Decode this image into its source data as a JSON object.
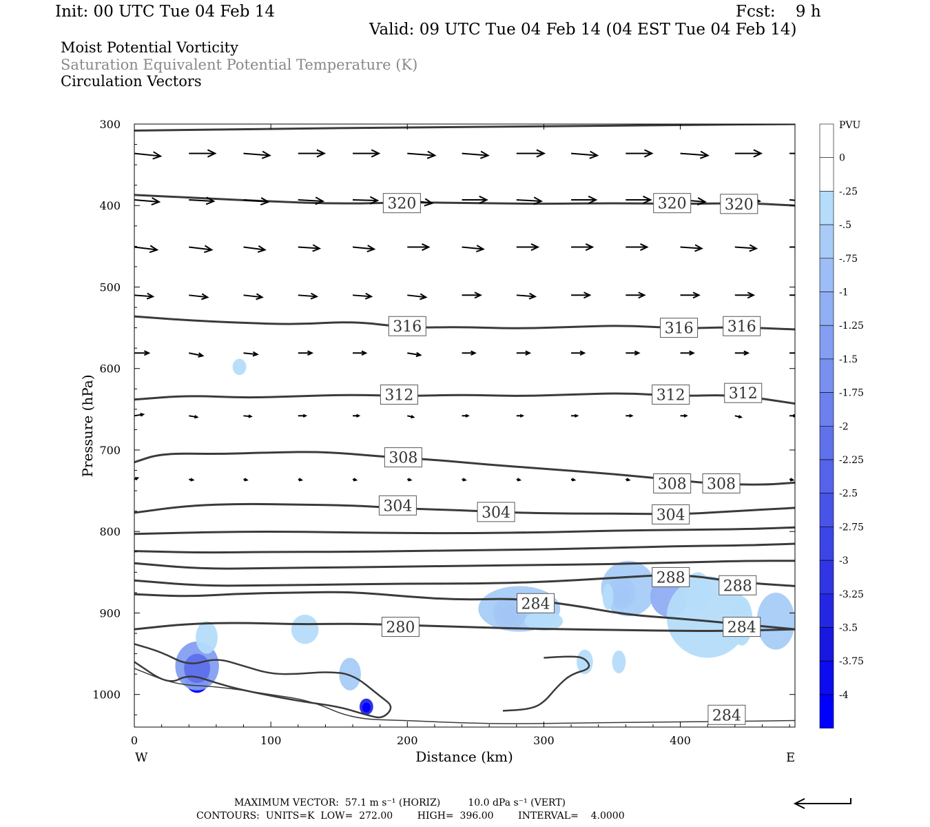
{
  "header": {
    "init": "Init: 00 UTC Tue 04 Feb 14",
    "fcst": "Fcst:    9 h",
    "valid": "Valid: 09 UTC Tue 04 Feb 14 (04 EST Tue 04 Feb 14)",
    "titles": [
      "Moist Potential Vorticity",
      "Saturation Equivalent Potential Temperature (K)",
      "Circulation Vectors"
    ]
  },
  "footer": {
    "line1": "MAXIMUM VECTOR:  57.1 m s⁻¹ (HORIZ)         10.0 dPa s⁻¹ (VERT)",
    "line2": "CONTOURS:  UNITS=K  LOW=  272.00        HIGH=  396.00        INTERVAL=    4.0000"
  },
  "colors": {
    "contour": "#3a3a3a",
    "vector": "#000000",
    "mpv_light": "#b5dcfa",
    "mpv_dark": "#1010ee"
  },
  "chart_data": {
    "type": "cross-section",
    "xlabel": "Distance (km)",
    "ylabel": "Pressure (hPa)",
    "xlim": [
      0,
      484
    ],
    "ylim": [
      1040,
      300
    ],
    "x_ticks": [
      0,
      100,
      200,
      300,
      400
    ],
    "y_ticks": [
      300,
      400,
      500,
      600,
      700,
      800,
      900,
      1000
    ],
    "x_end_labels": {
      "left": "W",
      "right": "E"
    },
    "colorbar": {
      "label": "PVU",
      "levels": [
        "0",
        "-.25",
        "-.5",
        "-.75",
        "-1",
        "-1.25",
        "-1.5",
        "-1.75",
        "-2",
        "-2.25",
        "-2.5",
        "-2.75",
        "-3",
        "-3.25",
        "-3.5",
        "-3.75",
        "-4"
      ],
      "colors": [
        "#ffffff",
        "#ffffff",
        "#b5dcfa",
        "#a8ccf7",
        "#9cbdf5",
        "#90aef3",
        "#849ff1",
        "#7890ef",
        "#6c81ed",
        "#6072eb",
        "#5463e9",
        "#4854e8",
        "#3c45e6",
        "#3036e4",
        "#2427e2",
        "#1818e0",
        "#0c0cee",
        "#0000ff"
      ]
    },
    "contour_labels": [
      {
        "value": "320",
        "x": 196,
        "p": 397
      },
      {
        "value": "320",
        "x": 394,
        "p": 397
      },
      {
        "value": "320",
        "x": 443,
        "p": 398
      },
      {
        "value": "316",
        "x": 200,
        "p": 548
      },
      {
        "value": "316",
        "x": 399,
        "p": 550
      },
      {
        "value": "316",
        "x": 445,
        "p": 548
      },
      {
        "value": "312",
        "x": 194,
        "p": 632
      },
      {
        "value": "312",
        "x": 393,
        "p": 632
      },
      {
        "value": "312",
        "x": 446,
        "p": 630
      },
      {
        "value": "308",
        "x": 197,
        "p": 709
      },
      {
        "value": "308",
        "x": 394,
        "p": 741
      },
      {
        "value": "308",
        "x": 430,
        "p": 741
      },
      {
        "value": "304",
        "x": 193,
        "p": 768
      },
      {
        "value": "304",
        "x": 265,
        "p": 776
      },
      {
        "value": "304",
        "x": 393,
        "p": 779
      },
      {
        "value": "288",
        "x": 393,
        "p": 856
      },
      {
        "value": "288",
        "x": 442,
        "p": 866
      },
      {
        "value": "284",
        "x": 294,
        "p": 888
      },
      {
        "value": "284",
        "x": 445,
        "p": 917
      },
      {
        "value": "284",
        "x": 434,
        "p": 1025
      },
      {
        "value": "280",
        "x": 195,
        "p": 917
      }
    ],
    "isentropes": [
      {
        "value": 324,
        "x": [
          0,
          100,
          200,
          300,
          400,
          484
        ],
        "p": [
          308,
          306,
          304,
          303,
          301,
          300
        ]
      },
      {
        "value": 320,
        "x": [
          0,
          50,
          100,
          150,
          200,
          250,
          300,
          350,
          400,
          450,
          484
        ],
        "p": [
          387,
          391,
          395,
          398,
          396,
          397,
          398,
          397,
          398,
          397,
          400
        ]
      },
      {
        "value": 316,
        "x": [
          0,
          40,
          80,
          120,
          160,
          200,
          240,
          280,
          320,
          360,
          400,
          440,
          484
        ],
        "p": [
          536,
          541,
          544,
          546,
          542,
          550,
          549,
          551,
          549,
          547,
          551,
          549,
          552
        ]
      },
      {
        "value": 312,
        "x": [
          0,
          40,
          80,
          120,
          160,
          200,
          240,
          280,
          320,
          360,
          400,
          440,
          484
        ],
        "p": [
          638,
          633,
          636,
          634,
          632,
          634,
          632,
          634,
          632,
          630,
          634,
          632,
          643
        ]
      },
      {
        "value": 308,
        "x": [
          0,
          20,
          60,
          100,
          140,
          180,
          220,
          260,
          300,
          340,
          380,
          420,
          460,
          484
        ],
        "p": [
          715,
          704,
          705,
          703,
          702,
          708,
          712,
          718,
          723,
          728,
          734,
          741,
          743,
          740
        ]
      },
      {
        "value": 304,
        "x": [
          0,
          40,
          80,
          120,
          160,
          200,
          240,
          280,
          320,
          360,
          400,
          440,
          484
        ],
        "p": [
          777,
          768,
          766,
          767,
          768,
          772,
          774,
          777,
          778,
          778,
          779,
          775,
          771
        ]
      },
      {
        "value": 300,
        "x": [
          0,
          50,
          100,
          150,
          200,
          250,
          300,
          350,
          400,
          450,
          484
        ],
        "p": [
          803,
          801,
          800,
          801,
          802,
          802,
          801,
          799,
          798,
          797,
          795
        ]
      },
      {
        "value": 296,
        "x": [
          0,
          50,
          100,
          150,
          200,
          250,
          300,
          350,
          400,
          450,
          484
        ],
        "p": [
          824,
          826,
          825,
          825,
          824,
          823,
          822,
          820,
          818,
          817,
          815
        ]
      },
      {
        "value": 292,
        "x": [
          0,
          50,
          100,
          150,
          200,
          250,
          300,
          350,
          400,
          450,
          484
        ],
        "p": [
          839,
          846,
          845,
          844,
          843,
          842,
          841,
          840,
          838,
          836,
          836
        ]
      },
      {
        "value": 288,
        "x": [
          0,
          50,
          100,
          150,
          200,
          250,
          300,
          350,
          400,
          440,
          484
        ],
        "p": [
          860,
          867,
          866,
          865,
          864,
          864,
          862,
          857,
          852,
          862,
          867
        ]
      },
      {
        "value": 284,
        "x": [
          0,
          40,
          80,
          120,
          160,
          200,
          240,
          280,
          320,
          360,
          400,
          440,
          484
        ],
        "p": [
          877,
          880,
          876,
          875,
          874,
          880,
          884,
          882,
          890,
          902,
          907,
          913,
          920
        ]
      },
      {
        "value": 280,
        "x": [
          0,
          40,
          80,
          120,
          160,
          200,
          240,
          280,
          320,
          360,
          400,
          440,
          484
        ],
        "p": [
          920,
          913,
          912,
          914,
          913,
          915,
          917,
          919,
          920,
          921,
          922,
          922,
          920
        ]
      }
    ],
    "low_contours": [
      {
        "x": [
          0,
          20,
          40,
          60,
          80,
          100,
          120,
          140,
          160,
          180,
          190,
          182,
          170,
          150,
          120,
          80,
          60,
          40,
          25,
          0
        ],
        "p": [
          938,
          948,
          965,
          955,
          965,
          975,
          975,
          972,
          975,
          1002,
          1015,
          1030,
          1025,
          1015,
          1008,
          995,
          986,
          975,
          988,
          960
        ]
      },
      {
        "x": [
          270,
          290,
          300,
          310,
          320,
          335,
          330,
          320,
          300
        ],
        "p": [
          1020,
          1018,
          1010,
          990,
          975,
          968,
          955,
          953,
          955
        ]
      },
      {
        "x": [
          0,
          30,
          60,
          100,
          130,
          160,
          200,
          240,
          280,
          320,
          380,
          440,
          484
        ],
        "p": [
          968,
          988,
          990,
          1000,
          1008,
          1030,
          1032,
          1035,
          1036,
          1035,
          1034,
          1033,
          1032
        ]
      }
    ],
    "mpv_blobs": [
      {
        "x": 46,
        "p": 980,
        "rx": 9,
        "rp": 18,
        "level": 15
      },
      {
        "x": 46,
        "p": 965,
        "rx": 16,
        "rp": 30,
        "level": 4
      },
      {
        "x": 170,
        "p": 1015,
        "rx": 5,
        "rp": 10,
        "level": 12
      },
      {
        "x": 275,
        "p": 900,
        "rx": 12,
        "rp": 20,
        "level": 7
      },
      {
        "x": 282,
        "p": 895,
        "rx": 30,
        "rp": 28,
        "level": 1
      },
      {
        "x": 357,
        "p": 875,
        "rx": 10,
        "rp": 20,
        "level": 5
      },
      {
        "x": 362,
        "p": 870,
        "rx": 20,
        "rp": 34,
        "level": 1
      },
      {
        "x": 392,
        "p": 880,
        "rx": 14,
        "rp": 25,
        "level": 3
      },
      {
        "x": 420,
        "p": 905,
        "rx": 30,
        "rp": 50,
        "level": 0
      },
      {
        "x": 470,
        "p": 910,
        "rx": 14,
        "rp": 35,
        "level": 1
      },
      {
        "x": 77,
        "p": 598,
        "rx": 5,
        "rp": 10,
        "level": 0
      },
      {
        "x": 53,
        "p": 930,
        "rx": 8,
        "rp": 20,
        "level": 0
      },
      {
        "x": 125,
        "p": 920,
        "rx": 10,
        "rp": 18,
        "level": 0
      },
      {
        "x": 158,
        "p": 975,
        "rx": 8,
        "rp": 20,
        "level": 1
      },
      {
        "x": 300,
        "p": 910,
        "rx": 14,
        "rp": 12,
        "level": 0
      },
      {
        "x": 330,
        "p": 960,
        "rx": 6,
        "rp": 15,
        "level": 0
      },
      {
        "x": 347,
        "p": 880,
        "rx": 4,
        "rp": 16,
        "level": 0
      },
      {
        "x": 355,
        "p": 960,
        "rx": 5,
        "rp": 14,
        "level": 0
      },
      {
        "x": 413,
        "p": 875,
        "rx": 10,
        "rp": 25,
        "level": 0
      },
      {
        "x": 445,
        "p": 910,
        "rx": 8,
        "rp": 30,
        "level": 0
      }
    ],
    "vectors": {
      "levels": [
        {
          "p": 336,
          "x": [
            0,
            40,
            80,
            120,
            160,
            200,
            240,
            280,
            320,
            360,
            400,
            440,
            480
          ],
          "dx": [
            38,
            38,
            38,
            38,
            38,
            40,
            38,
            40,
            38,
            38,
            40,
            38,
            42
          ],
          "dp": [
            4,
            0,
            3,
            0,
            0,
            3,
            3,
            0,
            3,
            0,
            3,
            0,
            0
          ]
        },
        {
          "p": 393,
          "x": [
            0,
            40,
            80,
            120,
            160,
            200,
            240,
            280,
            320,
            360,
            400,
            440,
            480
          ],
          "dx": [
            36,
            36,
            36,
            36,
            36,
            36,
            36,
            36,
            36,
            36,
            36,
            36,
            36
          ],
          "dp": [
            3,
            2,
            3,
            2,
            1,
            5,
            0,
            2,
            0,
            0,
            3,
            2,
            3
          ]
        },
        {
          "p": 451,
          "x": [
            0,
            40,
            80,
            120,
            160,
            200,
            240,
            280,
            320,
            360,
            400,
            440,
            480
          ],
          "dx": [
            33,
            33,
            31,
            31,
            31,
            31,
            31,
            31,
            31,
            31,
            31,
            31,
            31
          ],
          "dp": [
            4,
            4,
            4,
            2,
            3,
            0,
            3,
            0,
            0,
            0,
            2,
            2,
            0
          ]
        },
        {
          "p": 510,
          "x": [
            0,
            40,
            80,
            120,
            160,
            200,
            240,
            280,
            320,
            360,
            400,
            440,
            480
          ],
          "dx": [
            27,
            27,
            27,
            27,
            27,
            27,
            27,
            27,
            27,
            27,
            27,
            27,
            27
          ],
          "dp": [
            2,
            3,
            3,
            2,
            2,
            3,
            0,
            2,
            0,
            0,
            0,
            0,
            0
          ]
        },
        {
          "p": 581,
          "x": [
            0,
            40,
            80,
            120,
            160,
            200,
            240,
            280,
            320,
            360,
            400,
            440,
            480
          ],
          "dx": [
            21,
            20,
            20,
            20,
            19,
            19,
            19,
            19,
            19,
            19,
            19,
            19,
            19
          ],
          "dp": [
            0,
            4,
            2,
            0,
            0,
            3,
            0,
            0,
            0,
            0,
            0,
            0,
            0
          ]
        },
        {
          "p": 658,
          "x": [
            0,
            40,
            80,
            120,
            160,
            200,
            240,
            280,
            320,
            360,
            400,
            440,
            480
          ],
          "dx": [
            13,
            12,
            11,
            11,
            9,
            9,
            9,
            9,
            9,
            9,
            9,
            9,
            9
          ],
          "dp": [
            -2,
            2,
            1,
            0,
            0,
            2,
            0,
            0,
            0,
            0,
            0,
            2,
            0
          ]
        },
        {
          "p": 736,
          "x": [
            0,
            40,
            80,
            120,
            160,
            200,
            240,
            280,
            320,
            360,
            400,
            440,
            480
          ],
          "dx": [
            5,
            6,
            5,
            5,
            5,
            5,
            5,
            5,
            5,
            5,
            5,
            5,
            5
          ],
          "dp": [
            -2,
            1,
            1,
            1,
            1,
            1,
            1,
            1,
            1,
            1,
            1,
            1,
            1
          ]
        }
      ]
    }
  }
}
